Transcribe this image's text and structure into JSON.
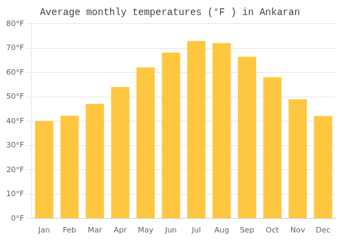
{
  "chart_data": {
    "type": "bar",
    "title": "Average monthly temperatures (°F ) in Ankaran",
    "categories": [
      "Jan",
      "Feb",
      "Mar",
      "Apr",
      "May",
      "Jun",
      "Jul",
      "Aug",
      "Sep",
      "Oct",
      "Nov",
      "Dec"
    ],
    "values": [
      40.1,
      42.3,
      47.1,
      54.0,
      62.1,
      68.2,
      73.0,
      72.1,
      66.5,
      58.1,
      49.0,
      42.1
    ],
    "color": "#ffc740",
    "ylim": [
      0,
      80
    ],
    "yticks": [
      {
        "value": 0,
        "label": "0°F"
      },
      {
        "value": 10,
        "label": "10°F"
      },
      {
        "value": 20,
        "label": "20°F"
      },
      {
        "value": 30,
        "label": "30°F"
      },
      {
        "value": 40,
        "label": "40°F"
      },
      {
        "value": 50,
        "label": "50°F"
      },
      {
        "value": 60,
        "label": "60°F"
      },
      {
        "value": 70,
        "label": "70°F"
      },
      {
        "value": 80,
        "label": "80°F"
      }
    ],
    "grid": true
  }
}
